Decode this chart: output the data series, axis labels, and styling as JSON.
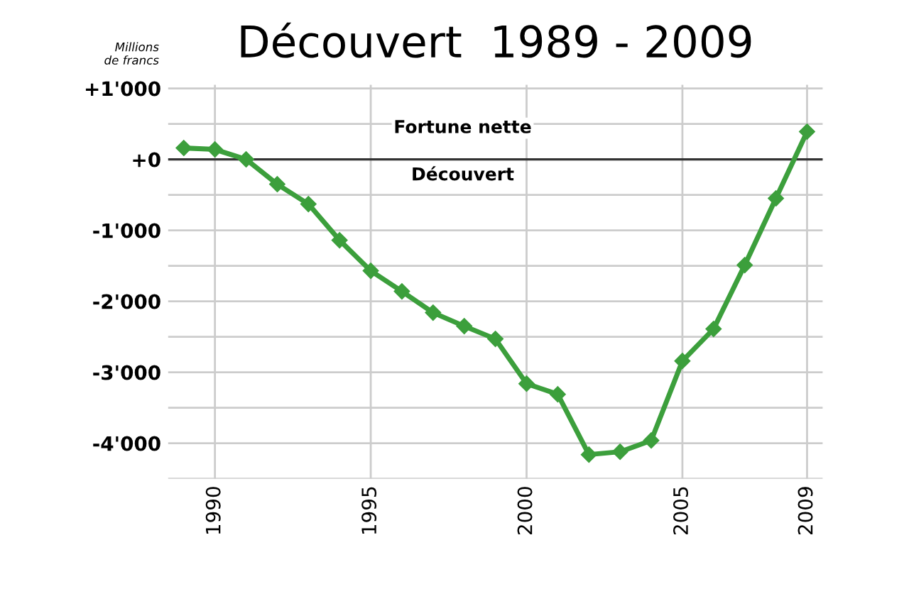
{
  "chart_data": {
    "type": "line",
    "title": "Découvert  1989 - 2009",
    "ylabel": "Millions\nde francs",
    "x": [
      1989,
      1990,
      1991,
      1992,
      1993,
      1994,
      1995,
      1996,
      1997,
      1998,
      1999,
      2000,
      2001,
      2002,
      2003,
      2004,
      2005,
      2006,
      2007,
      2008,
      2009
    ],
    "series": [
      {
        "color": "#3c9f3c",
        "values": [
          160,
          140,
          0,
          -350,
          -630,
          -1140,
          -1570,
          -1860,
          -2160,
          -2350,
          -2530,
          -3160,
          -3310,
          -4160,
          -4120,
          -3960,
          -2840,
          -2390,
          -1490,
          -550,
          390
        ]
      }
    ],
    "xlim": [
      1988.5,
      2009.5
    ],
    "xticks": [
      1990,
      1995,
      2000,
      2005,
      2009
    ],
    "ylim": [
      -4500,
      1050
    ],
    "yticks": [
      {
        "value": -4500,
        "label": null
      },
      {
        "value": -4000,
        "label": "-4'000"
      },
      {
        "value": -3500,
        "label": null
      },
      {
        "value": -3000,
        "label": "-3'000"
      },
      {
        "value": -2500,
        "label": null
      },
      {
        "value": -2000,
        "label": "-2'000"
      },
      {
        "value": -1500,
        "label": null
      },
      {
        "value": -1000,
        "label": "-1'000"
      },
      {
        "value": -500,
        "label": null
      },
      {
        "value": 0,
        "label": "+0"
      },
      {
        "value": 500,
        "label": null
      },
      {
        "value": 1000,
        "label": "+1'000"
      }
    ],
    "ref_lines": [
      {
        "axis": "y",
        "value": 0,
        "color": "#333333"
      }
    ],
    "annotations": [
      "Fortune nette",
      "Découvert"
    ],
    "grid": true,
    "marker": "diamond",
    "line_style": "solid"
  }
}
